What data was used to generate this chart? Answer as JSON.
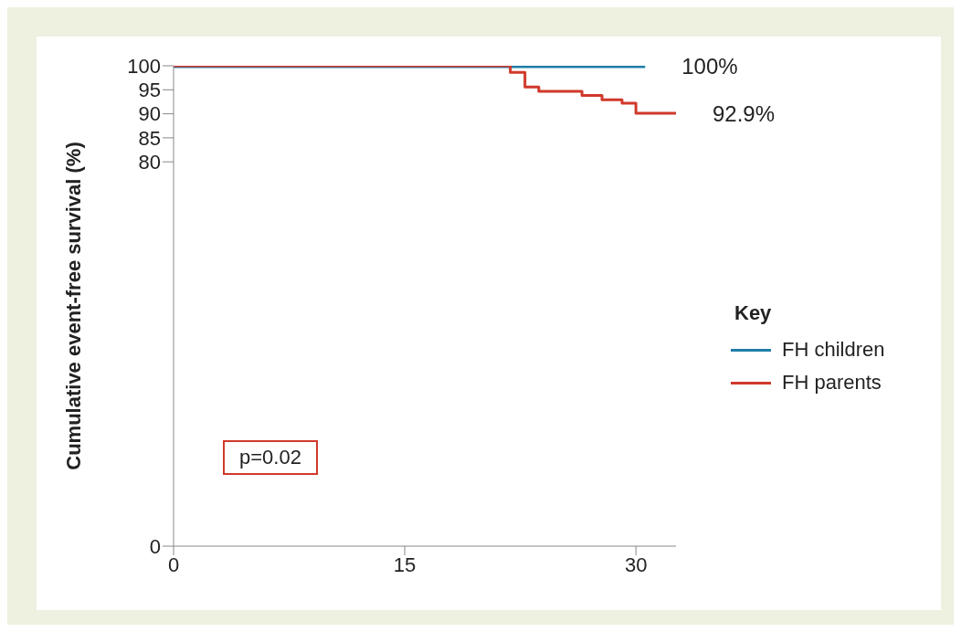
{
  "chart_data": {
    "type": "step",
    "ylabel": "Cumulative event-free survival (%)",
    "legend_title": "Key",
    "legend": "right",
    "xlim": [
      0,
      32.6
    ],
    "xticks": [
      0,
      15,
      30
    ],
    "ylim": [
      0,
      100
    ],
    "yticks": [
      0,
      80,
      85,
      90,
      95,
      100
    ],
    "series": [
      {
        "name": "FH children",
        "color": "#1f7ea8",
        "x": [
          0,
          30.6
        ],
        "values": [
          100,
          100
        ]
      },
      {
        "name": "FH parents",
        "color": "#d0392b",
        "x": [
          0,
          21.85,
          22.8,
          23.7,
          26.5,
          27.8,
          29.1,
          30.0,
          32.6
        ],
        "values": [
          100,
          98.6,
          95.6,
          94.7,
          93.8,
          92.9,
          92.2,
          90.1,
          90.1
        ]
      }
    ],
    "annotations": [
      {
        "text": "100%",
        "x": 30.6,
        "y": 100
      },
      {
        "text": "92.9%",
        "x": 32.6,
        "y": 90.1
      },
      "p=0.02"
    ]
  }
}
